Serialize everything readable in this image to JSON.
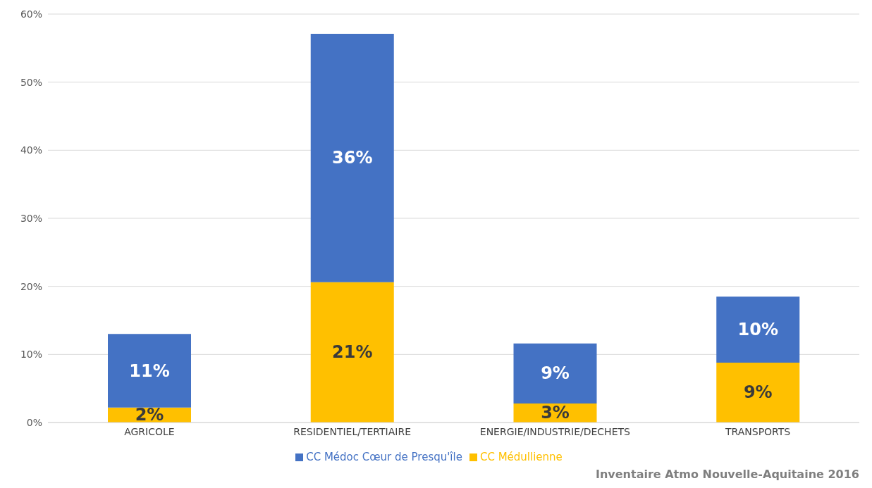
{
  "chart_data": {
    "type": "bar",
    "stacked": true,
    "categories": [
      "AGRICOLE",
      "RESIDENTIEL/TERTIAIRE",
      "ENERGIE/INDUSTRIE/DECHETS",
      "TRANSPORTS"
    ],
    "series": [
      {
        "name": "CC Médullienne",
        "color": "#ffc000",
        "values": [
          2.2,
          20.6,
          2.8,
          8.8
        ],
        "value_labels": [
          "2%",
          "21%",
          "3%",
          "9%"
        ]
      },
      {
        "name": "CC Médoc Cœur de Presqu'île",
        "color": "#4472c4",
        "values": [
          10.8,
          36.5,
          8.8,
          9.7
        ],
        "value_labels": [
          "11%",
          "36%",
          "9%",
          "10%"
        ]
      }
    ],
    "ylim": [
      0,
      60
    ],
    "yticks": [
      {
        "value": 0,
        "label": "0%"
      },
      {
        "value": 10,
        "label": "10%"
      },
      {
        "value": 20,
        "label": "20%"
      },
      {
        "value": 30,
        "label": "30%"
      },
      {
        "value": 40,
        "label": "40%"
      },
      {
        "value": 50,
        "label": "50%"
      },
      {
        "value": 60,
        "label": "60%"
      }
    ],
    "grid": "y",
    "legend": "bottom",
    "annotations": [
      "Inventaire Atmo Nouvelle-Aquitaine 2016"
    ]
  }
}
